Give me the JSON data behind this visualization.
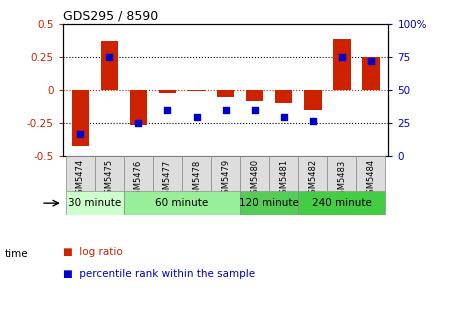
{
  "title": "GDS295 / 8590",
  "samples": [
    "GSM5474",
    "GSM5475",
    "GSM5476",
    "GSM5477",
    "GSM5478",
    "GSM5479",
    "GSM5480",
    "GSM5481",
    "GSM5482",
    "GSM5483",
    "GSM5484"
  ],
  "log_ratio": [
    -0.42,
    0.37,
    -0.26,
    -0.02,
    -0.01,
    -0.05,
    -0.08,
    -0.1,
    -0.15,
    0.38,
    0.25
  ],
  "percentile": [
    17,
    75,
    25,
    35,
    30,
    35,
    35,
    30,
    27,
    75,
    72
  ],
  "ylim_left": [
    -0.5,
    0.5
  ],
  "ylim_right": [
    0,
    100
  ],
  "yticks_left": [
    -0.5,
    -0.25,
    0,
    0.25,
    0.5
  ],
  "yticks_right": [
    0,
    25,
    50,
    75,
    100
  ],
  "ytick_labels_left": [
    "-0.5",
    "-0.25",
    "0",
    "0.25",
    "0.5"
  ],
  "ytick_labels_right": [
    "0",
    "25",
    "50",
    "75",
    "100%"
  ],
  "bar_color": "#cc2200",
  "dot_color": "#0000cc",
  "groups": [
    {
      "label": "30 minute",
      "start": 0,
      "end": 2,
      "color": "#ccffcc"
    },
    {
      "label": "60 minute",
      "start": 2,
      "end": 6,
      "color": "#99ee99"
    },
    {
      "label": "120 minute",
      "start": 6,
      "end": 8,
      "color": "#55cc55"
    },
    {
      "label": "240 minute",
      "start": 8,
      "end": 11,
      "color": "#44cc44"
    }
  ],
  "legend_log_ratio": "log ratio",
  "legend_percentile": "percentile rank within the sample",
  "bar_width": 0.6
}
